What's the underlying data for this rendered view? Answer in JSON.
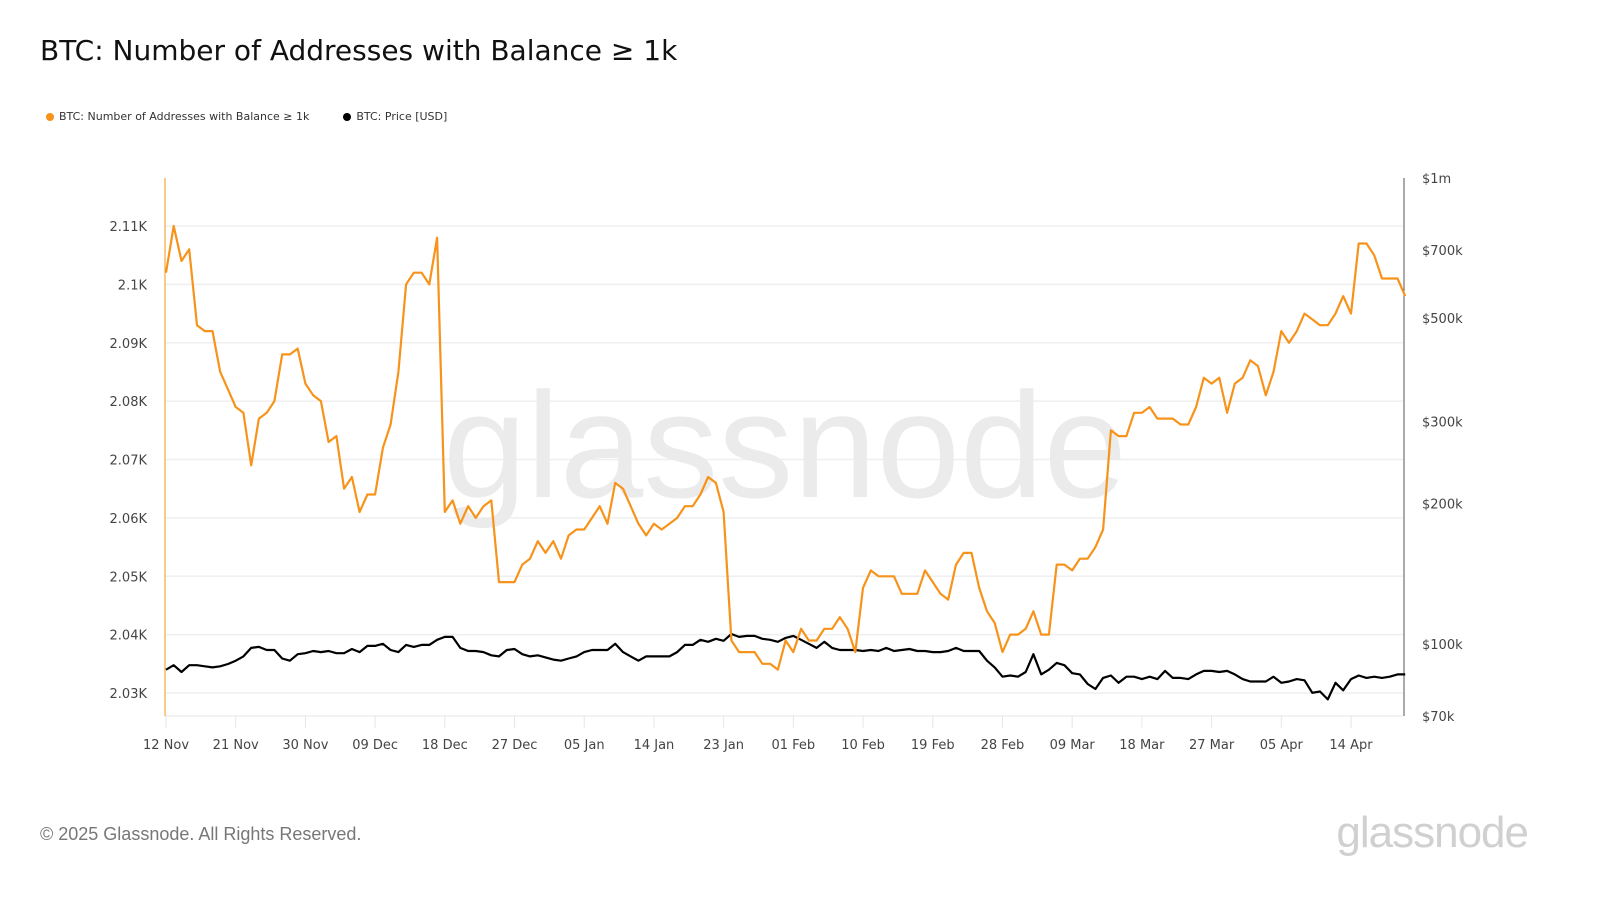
{
  "header": {
    "title": "BTC: Number of Addresses with Balance ≥ 1k"
  },
  "legend": [
    {
      "label": "BTC: Number of Addresses with Balance ≥ 1k",
      "color": "#f7931a"
    },
    {
      "label": "BTC: Price [USD]",
      "color": "#000000"
    }
  ],
  "watermark": "glassnode",
  "footer": {
    "copyright": "© 2025 Glassnode. All Rights Reserved.",
    "logo": "glassnode"
  },
  "colors": {
    "addresses": "#f7931a",
    "price": "#000000",
    "grid": "#efefef",
    "axis": "#555555"
  },
  "chart_data": {
    "type": "line",
    "title": "BTC: Number of Addresses with Balance ≥ 1k",
    "xlabel": "",
    "ylabel": "",
    "ylabel_right": "",
    "grid": true,
    "legend_position": "top-left",
    "x_start": "2024-11-12",
    "x_ticks": [
      "12 Nov",
      "21 Nov",
      "30 Nov",
      "09 Dec",
      "18 Dec",
      "27 Dec",
      "05 Jan",
      "14 Jan",
      "23 Jan",
      "01 Feb",
      "10 Feb",
      "19 Feb",
      "28 Feb",
      "09 Mar",
      "18 Mar",
      "27 Mar",
      "05 Apr",
      "14 Apr"
    ],
    "y_ticks_left": [
      "2.03K",
      "2.04K",
      "2.05K",
      "2.06K",
      "2.07K",
      "2.08K",
      "2.09K",
      "2.1K",
      "2.11K"
    ],
    "ylim_left": [
      2028,
      2119
    ],
    "y_ticks_right": [
      "$70k",
      "$100k",
      "$200k",
      "$300k",
      "$500k",
      "$700k",
      "$1m"
    ],
    "ylim_right": [
      70000,
      1000000
    ],
    "right_scale": "log",
    "series": [
      {
        "name": "BTC: Number of Addresses with Balance ≥ 1k",
        "axis": "left",
        "color": "#f7931a",
        "values": [
          2102,
          2110,
          2104,
          2106,
          2093,
          2092,
          2092,
          2085,
          2082,
          2079,
          2078,
          2069,
          2077,
          2078,
          2080,
          2088,
          2088,
          2089,
          2083,
          2081,
          2080,
          2073,
          2074,
          2065,
          2067,
          2061,
          2064,
          2064,
          2072,
          2076,
          2085,
          2100,
          2102,
          2102,
          2100,
          2108,
          2061,
          2063,
          2059,
          2062,
          2060,
          2062,
          2063,
          2049,
          2049,
          2049,
          2052,
          2053,
          2056,
          2054,
          2056,
          2053,
          2057,
          2058,
          2058,
          2060,
          2062,
          2059,
          2066,
          2065,
          2062,
          2059,
          2057,
          2059,
          2058,
          2059,
          2060,
          2062,
          2062,
          2064,
          2067,
          2066,
          2061,
          2039,
          2037,
          2037,
          2037,
          2035,
          2035,
          2034,
          2039,
          2037,
          2041,
          2039,
          2039,
          2041,
          2041,
          2043,
          2041,
          2037,
          2048,
          2051,
          2050,
          2050,
          2050,
          2047,
          2047,
          2047,
          2051,
          2049,
          2047,
          2046,
          2052,
          2054,
          2054,
          2048,
          2044,
          2042,
          2037,
          2040,
          2040,
          2041,
          2044,
          2040,
          2040,
          2052,
          2052,
          2051,
          2053,
          2053,
          2055,
          2058,
          2075,
          2074,
          2074,
          2078,
          2078,
          2079,
          2077,
          2077,
          2077,
          2076,
          2076,
          2079,
          2084,
          2083,
          2084,
          2078,
          2083,
          2084,
          2087,
          2086,
          2081,
          2085,
          2092,
          2090,
          2092,
          2095,
          2094,
          2093,
          2093,
          2095,
          2098,
          2095,
          2107,
          2107,
          2105,
          2101,
          2101,
          2101,
          2098
        ]
      },
      {
        "name": "BTC: Price [USD]",
        "axis": "right",
        "color": "#000000",
        "values": [
          88000,
          90000,
          87000,
          90000,
          90000,
          89500,
          89000,
          89500,
          90500,
          92000,
          94000,
          98000,
          98500,
          97000,
          97000,
          93000,
          92000,
          95000,
          95500,
          96500,
          96000,
          96500,
          95500,
          95500,
          97500,
          96000,
          99000,
          99000,
          100000,
          97000,
          96000,
          99500,
          98500,
          99500,
          99500,
          102000,
          103500,
          103500,
          98000,
          96500,
          96500,
          96000,
          94500,
          94000,
          97000,
          97500,
          95000,
          94000,
          94500,
          93500,
          92500,
          92000,
          93000,
          94000,
          96000,
          97000,
          97000,
          97000,
          100000,
          96000,
          94000,
          92000,
          94000,
          94000,
          94000,
          94000,
          96000,
          99500,
          99500,
          102000,
          101000,
          102500,
          101500,
          105000,
          103500,
          104000,
          104000,
          102500,
          102000,
          101000,
          103000,
          104000,
          102000,
          100000,
          98000,
          101000,
          98000,
          97000,
          97000,
          97000,
          96500,
          97000,
          96500,
          98000,
          96500,
          97000,
          97500,
          96500,
          96500,
          96000,
          96000,
          96500,
          98000,
          96500,
          96500,
          96500,
          92000,
          89000,
          85000,
          85500,
          85000,
          87000,
          95000,
          86000,
          88000,
          91000,
          90000,
          86500,
          86000,
          82000,
          80000,
          84500,
          85500,
          82500,
          85000,
          85000,
          84000,
          85000,
          84000,
          87500,
          84500,
          84500,
          84000,
          86000,
          87500,
          87500,
          87000,
          87500,
          86000,
          84000,
          83000,
          83000,
          83000,
          85000,
          82500,
          83000,
          84000,
          83500,
          78500,
          79000,
          76000,
          82500,
          79500,
          84000,
          85500,
          84500,
          85000,
          84500,
          85000,
          86000,
          86000
        ]
      }
    ]
  }
}
